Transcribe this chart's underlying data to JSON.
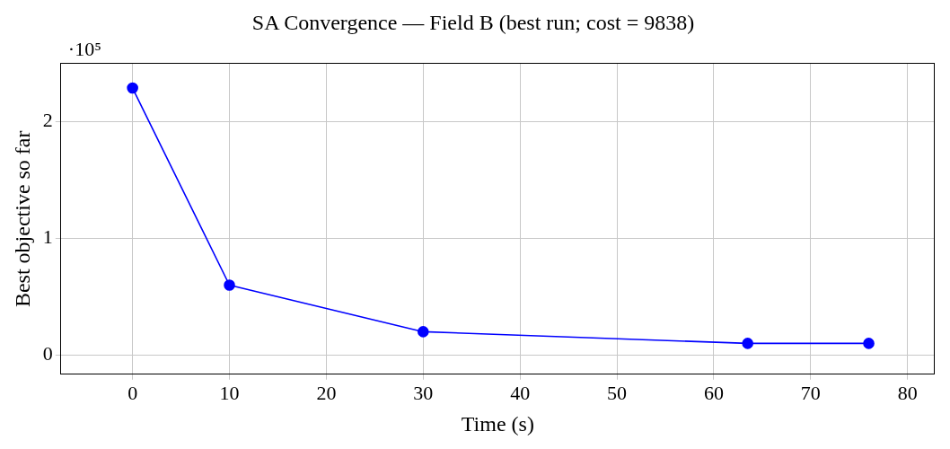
{
  "chart_data": {
    "type": "line",
    "title": "SA Convergence — Field B (best run; cost = 9838)",
    "xlabel": "Time (s)",
    "ylabel": "Best objective so far",
    "x": [
      0,
      10,
      30,
      63.5,
      76
    ],
    "series": [
      {
        "color": "#0000ff",
        "values": [
          2.29,
          0.6,
          0.2,
          0.1,
          0.1
        ]
      }
    ],
    "xlim": [
      -7.4,
      82.8
    ],
    "xticks": [
      0,
      10,
      20,
      30,
      40,
      50,
      60,
      70,
      80
    ],
    "ylim": [
      -0.165,
      2.5
    ],
    "yticks": [
      0,
      1,
      2
    ],
    "annotations": [
      "·10⁵"
    ],
    "grid": true,
    "legend": false,
    "marker": "circle",
    "line_style": "solid"
  }
}
